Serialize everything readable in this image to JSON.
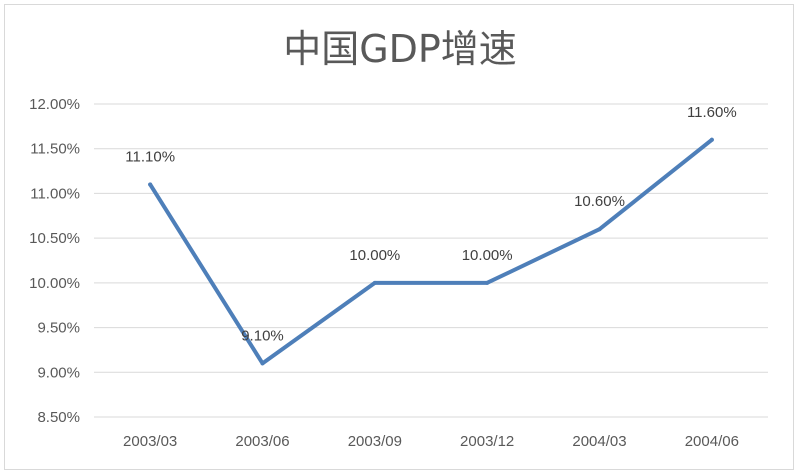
{
  "chart_data": {
    "type": "line",
    "title": "中国GDP增速",
    "categories": [
      "2003/03",
      "2003/06",
      "2003/09",
      "2003/12",
      "2004/03",
      "2004/06"
    ],
    "series": [
      {
        "values": [
          11.1,
          9.1,
          10.0,
          10.0,
          10.6,
          11.6
        ],
        "data_labels": [
          "11.10%",
          "9.10%",
          "10.00%",
          "10.00%",
          "10.60%",
          "11.60%"
        ]
      }
    ],
    "y_ticks": [
      "8.50%",
      "9.00%",
      "9.50%",
      "10.00%",
      "10.50%",
      "11.00%",
      "11.50%",
      "12.00%"
    ],
    "ylim": [
      8.5,
      12.0
    ],
    "grid": true,
    "legend": "none",
    "colors": {
      "line": "#4e7fb9",
      "grid": "#d9d9d9",
      "text": "#595959"
    }
  }
}
